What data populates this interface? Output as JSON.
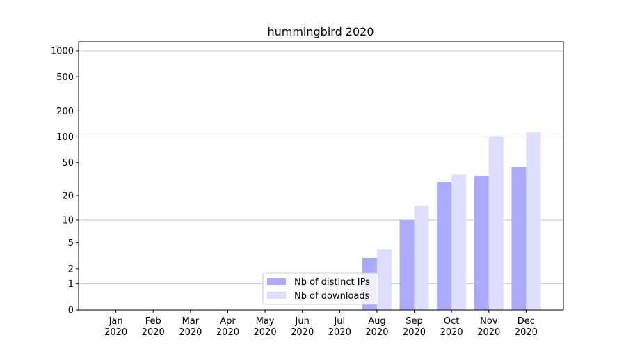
{
  "chart_data": {
    "type": "bar",
    "title": "hummingbird 2020",
    "categories": [
      "Jan 2020",
      "Feb 2020",
      "Mar 2020",
      "Apr 2020",
      "May 2020",
      "Jun 2020",
      "Jul 2020",
      "Aug 2020",
      "Sep 2020",
      "Oct 2020",
      "Nov 2020",
      "Dec 2020"
    ],
    "series": [
      {
        "name": "Nb of distinct IPs",
        "color": "#aaaaff",
        "values": [
          0,
          0,
          0,
          0,
          0,
          0,
          0,
          3,
          10,
          29,
          35,
          44
        ]
      },
      {
        "name": "Nb of downloads",
        "color": "#ddddff",
        "values": [
          0,
          0,
          0,
          0,
          0,
          0,
          0,
          4,
          15,
          36,
          102,
          113
        ]
      }
    ],
    "yscale": "log1p",
    "ylim": [
      0,
      1273
    ],
    "yticks": [
      0,
      1,
      2,
      5,
      10,
      20,
      50,
      100,
      200,
      500,
      1000
    ],
    "major_grid": [
      1,
      10,
      100,
      1000
    ],
    "legend": "lower center"
  }
}
